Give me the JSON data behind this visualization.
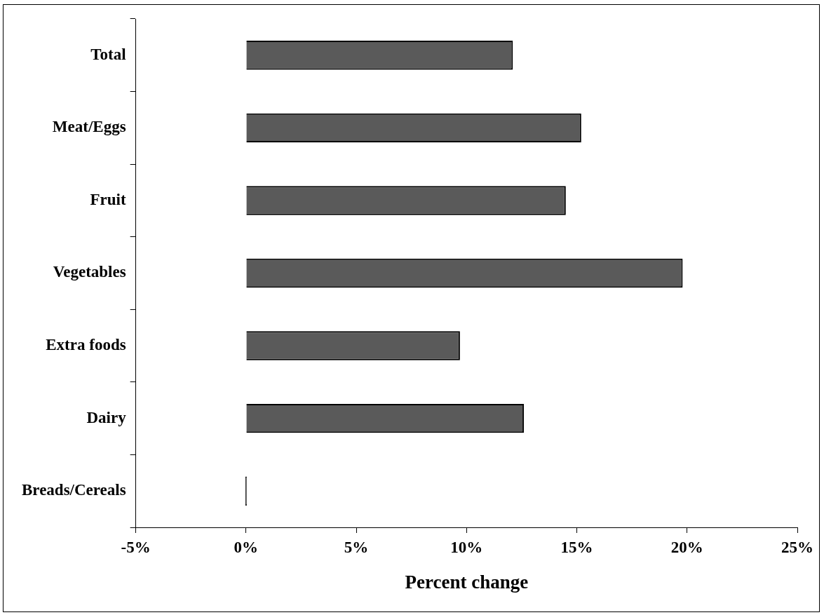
{
  "chart_data": {
    "type": "bar",
    "orientation": "horizontal",
    "xlabel": "Percent change",
    "categories": [
      "Total",
      "Meat/Eggs",
      "Fruit",
      "Vegetables",
      "Extra foods",
      "Dairy",
      "Breads/Cereals"
    ],
    "values": [
      12.1,
      15.2,
      14.5,
      19.8,
      9.7,
      12.6,
      0
    ],
    "color": "#5a5a5a",
    "xlim": [
      -5,
      25
    ],
    "xticks": [
      {
        "value": -5,
        "label": "-5%"
      },
      {
        "value": 0,
        "label": "0%"
      },
      {
        "value": 5,
        "label": "5%"
      },
      {
        "value": 10,
        "label": "10%"
      },
      {
        "value": 15,
        "label": "15%"
      },
      {
        "value": 20,
        "label": "20%"
      },
      {
        "value": 25,
        "label": "25%"
      }
    ],
    "grid": false,
    "legend": false
  }
}
